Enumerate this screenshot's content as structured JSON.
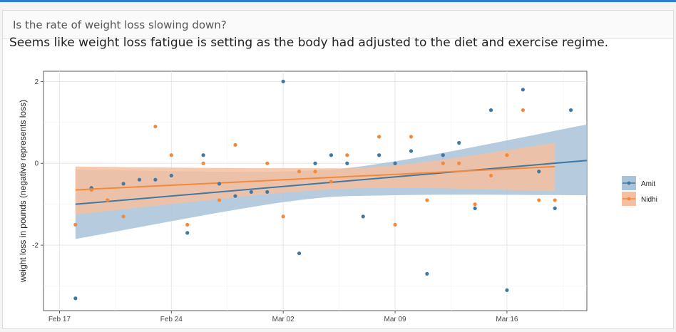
{
  "card": {
    "title": "Is the rate of weight loss slowing down?",
    "description": "Seems like weight loss fatigue is setting as the body had adjusted to the diet and exercise regime."
  },
  "chart_data": {
    "type": "scatter",
    "title": "",
    "xlabel": "",
    "ylabel": "weight loss in pounds (negative represents loss)",
    "x_ticks": [
      "Feb 17",
      "Feb 24",
      "Mar 02",
      "Mar 09",
      "Mar 16"
    ],
    "y_ticks": [
      -2,
      0,
      2
    ],
    "xlim": [
      "2020-02-16",
      "2020-03-21"
    ],
    "ylim": [
      -3.6,
      2.25
    ],
    "grid": true,
    "legend_position": "right",
    "series": [
      {
        "name": "Amit",
        "color": "#3f78a5",
        "fill": "#a9c3d8",
        "trend": [
          [
            "2020-02-18",
            -1.0
          ],
          [
            "2020-03-21",
            0.07
          ]
        ],
        "band_upper": [
          [
            "2020-02-18",
            -0.15
          ],
          [
            "2020-03-02",
            -0.2
          ],
          [
            "2020-03-09",
            0.05
          ],
          [
            "2020-03-21",
            0.95
          ]
        ],
        "band_lower": [
          [
            "2020-02-18",
            -1.85
          ],
          [
            "2020-03-02",
            -0.95
          ],
          [
            "2020-03-09",
            -0.78
          ],
          [
            "2020-03-21",
            -0.78
          ]
        ],
        "points": [
          [
            "2020-02-18",
            -3.3
          ],
          [
            "2020-02-19",
            -0.6
          ],
          [
            "2020-02-21",
            -0.5
          ],
          [
            "2020-02-22",
            -0.4
          ],
          [
            "2020-02-23",
            -0.4
          ],
          [
            "2020-02-24",
            -0.3
          ],
          [
            "2020-02-25",
            -1.7
          ],
          [
            "2020-02-26",
            0.2
          ],
          [
            "2020-02-27",
            -0.5
          ],
          [
            "2020-02-28",
            -0.8
          ],
          [
            "2020-02-29",
            -0.7
          ],
          [
            "2020-03-01",
            -0.7
          ],
          [
            "2020-03-02",
            2.0
          ],
          [
            "2020-03-03",
            -2.2
          ],
          [
            "2020-03-04",
            0.0
          ],
          [
            "2020-03-05",
            0.2
          ],
          [
            "2020-03-06",
            0.0
          ],
          [
            "2020-03-07",
            -1.3
          ],
          [
            "2020-03-08",
            0.2
          ],
          [
            "2020-03-09",
            0.0
          ],
          [
            "2020-03-10",
            0.3
          ],
          [
            "2020-03-11",
            -2.7
          ],
          [
            "2020-03-12",
            0.2
          ],
          [
            "2020-03-13",
            0.5
          ],
          [
            "2020-03-14",
            -1.1
          ],
          [
            "2020-03-15",
            1.3
          ],
          [
            "2020-03-16",
            -3.1
          ],
          [
            "2020-03-17",
            1.8
          ],
          [
            "2020-03-18",
            -0.2
          ],
          [
            "2020-03-19",
            -1.1
          ],
          [
            "2020-03-20",
            1.3
          ]
        ]
      },
      {
        "name": "Nidhi",
        "color": "#f5893a",
        "fill": "#f5bfa0",
        "trend": [
          [
            "2020-02-18",
            -0.65
          ],
          [
            "2020-03-19",
            -0.08
          ]
        ],
        "band_upper": [
          [
            "2020-02-18",
            -0.08
          ],
          [
            "2020-03-02",
            -0.12
          ],
          [
            "2020-03-09",
            -0.05
          ],
          [
            "2020-03-19",
            0.5
          ]
        ],
        "band_lower": [
          [
            "2020-02-18",
            -1.25
          ],
          [
            "2020-03-02",
            -0.72
          ],
          [
            "2020-03-09",
            -0.6
          ],
          [
            "2020-03-19",
            -0.68
          ]
        ],
        "points": [
          [
            "2020-02-18",
            -1.5
          ],
          [
            "2020-02-19",
            -0.65
          ],
          [
            "2020-02-20",
            -0.9
          ],
          [
            "2020-02-21",
            -1.3
          ],
          [
            "2020-02-23",
            0.9
          ],
          [
            "2020-02-24",
            0.2
          ],
          [
            "2020-02-25",
            -1.5
          ],
          [
            "2020-02-26",
            0.0
          ],
          [
            "2020-02-27",
            -0.9
          ],
          [
            "2020-02-28",
            0.45
          ],
          [
            "2020-03-01",
            0.0
          ],
          [
            "2020-03-02",
            -1.3
          ],
          [
            "2020-03-03",
            -0.2
          ],
          [
            "2020-03-04",
            -0.2
          ],
          [
            "2020-03-05",
            -0.45
          ],
          [
            "2020-03-06",
            0.2
          ],
          [
            "2020-03-08",
            0.65
          ],
          [
            "2020-03-09",
            -1.5
          ],
          [
            "2020-03-10",
            0.65
          ],
          [
            "2020-03-11",
            -0.9
          ],
          [
            "2020-03-12",
            0.0
          ],
          [
            "2020-03-13",
            0.0
          ],
          [
            "2020-03-14",
            -1.0
          ],
          [
            "2020-03-15",
            -0.3
          ],
          [
            "2020-03-16",
            0.2
          ],
          [
            "2020-03-17",
            1.3
          ],
          [
            "2020-03-18",
            -0.9
          ],
          [
            "2020-03-19",
            -0.9
          ]
        ]
      }
    ]
  }
}
